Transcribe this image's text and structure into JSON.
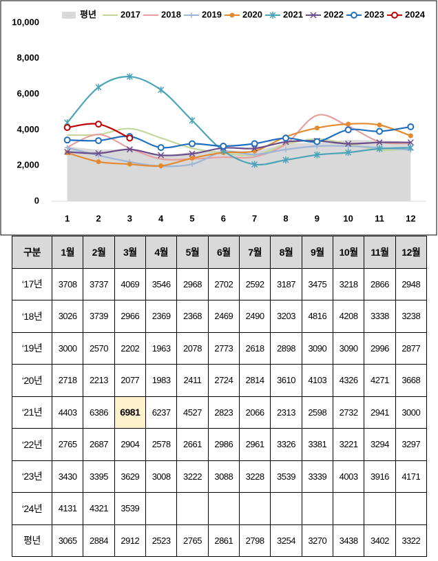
{
  "chart_data": {
    "type": "line",
    "categories": [
      "1",
      "2",
      "3",
      "4",
      "5",
      "6",
      "7",
      "8",
      "9",
      "10",
      "11",
      "12"
    ],
    "series": [
      {
        "name": "평년",
        "color": "#d9d9d9",
        "style": "area",
        "values": [
          3065,
          2884,
          2912,
          2523,
          2765,
          2861,
          2798,
          3254,
          3270,
          3438,
          3402,
          3322
        ]
      },
      {
        "name": "2017",
        "color": "#c3d69b",
        "marker": "none",
        "values": [
          3708,
          3737,
          4069,
          3546,
          2968,
          2702,
          2592,
          3187,
          3475,
          3218,
          2866,
          2948
        ]
      },
      {
        "name": "2018",
        "color": "#e6a0a0",
        "marker": "none",
        "values": [
          3026,
          3739,
          2966,
          2369,
          2368,
          2469,
          2490,
          3203,
          4816,
          4208,
          3338,
          3238
        ]
      },
      {
        "name": "2019",
        "color": "#9db5d8",
        "marker": "plus",
        "values": [
          3000,
          2570,
          2202,
          1963,
          2078,
          2773,
          2618,
          2898,
          3090,
          3090,
          2996,
          2877
        ]
      },
      {
        "name": "2020",
        "color": "#e48a2e",
        "marker": "dot",
        "values": [
          2718,
          2213,
          2077,
          1983,
          2411,
          2724,
          2814,
          3610,
          4103,
          4326,
          4271,
          3668
        ]
      },
      {
        "name": "2021",
        "color": "#4aa3b8",
        "marker": "star",
        "values": [
          4403,
          6386,
          6981,
          6237,
          4527,
          2823,
          2066,
          2313,
          2598,
          2732,
          2941,
          3000
        ]
      },
      {
        "name": "2022",
        "color": "#6b4c8a",
        "marker": "x",
        "values": [
          2765,
          2687,
          2904,
          2578,
          2661,
          2986,
          2961,
          3326,
          3381,
          3221,
          3294,
          3297
        ]
      },
      {
        "name": "2023",
        "color": "#1f6fc0",
        "marker": "circle",
        "values": [
          3430,
          3395,
          3629,
          3008,
          3222,
          3088,
          3228,
          3539,
          3339,
          4003,
          3916,
          4171
        ]
      },
      {
        "name": "2024",
        "color": "#c00000",
        "marker": "circle",
        "values": [
          4131,
          4321,
          3539,
          null,
          null,
          null,
          null,
          null,
          null,
          null,
          null,
          null
        ]
      }
    ],
    "ylim": [
      0,
      10000
    ],
    "yticks": [
      0,
      {
        "value": 2000,
        "label": "2,000"
      },
      {
        "value": 4000,
        "label": "4,000"
      },
      {
        "value": 6000,
        "label": "6,000"
      },
      {
        "value": 8000,
        "label": "8,000"
      },
      {
        "value": 10000,
        "label": "10,000"
      }
    ]
  },
  "table": {
    "header": [
      "구분",
      "1월",
      "2월",
      "3월",
      "4월",
      "5월",
      "6월",
      "7월",
      "8월",
      "9월",
      "10월",
      "11월",
      "12월"
    ],
    "row_labels": [
      "‘17년",
      "‘18년",
      "‘19년",
      "‘20년",
      "‘21년",
      "‘22년",
      "‘23년",
      "‘24년",
      "평년"
    ],
    "highlight": [
      4,
      2
    ]
  }
}
